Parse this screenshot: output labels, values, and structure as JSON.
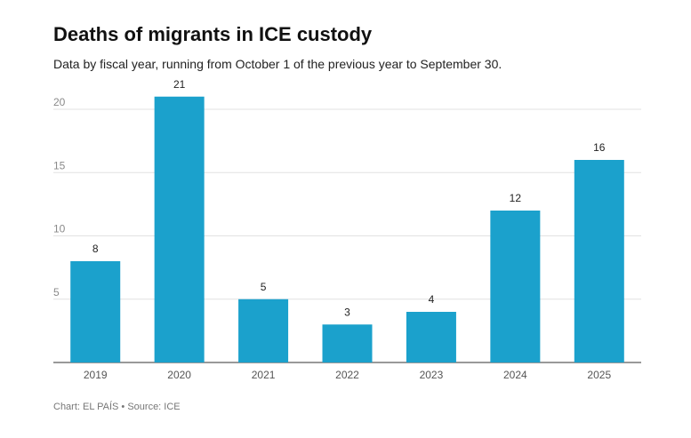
{
  "header": {
    "title": "Deaths of migrants in ICE custody",
    "subtitle": "Data by fiscal year, running from October 1 of the previous year to September 30."
  },
  "footer": {
    "source": "Chart: EL PAÍS • Source: ICE"
  },
  "chart_data": {
    "type": "bar",
    "title": "Deaths of migrants in ICE custody",
    "subtitle": "Data by fiscal year, running from October 1 of the previous year to September 30.",
    "categories": [
      "2019",
      "2020",
      "2021",
      "2022",
      "2023",
      "2024",
      "2025"
    ],
    "values": [
      8,
      21,
      5,
      3,
      4,
      12,
      16
    ],
    "xlabel": "",
    "ylabel": "",
    "ylim": [
      0,
      20
    ],
    "yticks": [
      5,
      10,
      15,
      20
    ],
    "grid": true,
    "legend": "none",
    "bar_color": "#1ba1cc"
  }
}
